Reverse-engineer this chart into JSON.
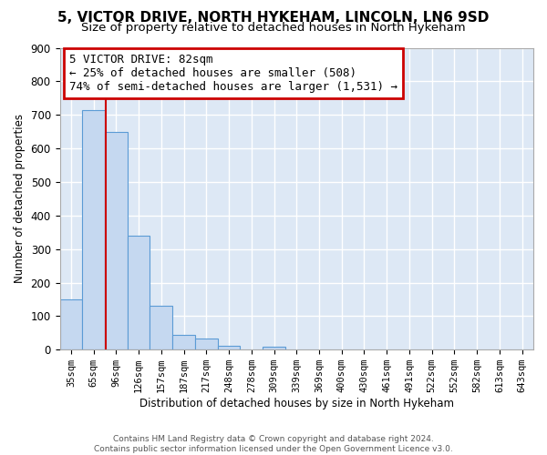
{
  "title1": "5, VICTOR DRIVE, NORTH HYKEHAM, LINCOLN, LN6 9SD",
  "title2": "Size of property relative to detached houses in North Hykeham",
  "xlabel": "Distribution of detached houses by size in North Hykeham",
  "ylabel": "Number of detached properties",
  "bar_labels": [
    "35sqm",
    "65sqm",
    "96sqm",
    "126sqm",
    "157sqm",
    "187sqm",
    "217sqm",
    "248sqm",
    "278sqm",
    "309sqm",
    "339sqm",
    "369sqm",
    "400sqm",
    "430sqm",
    "461sqm",
    "491sqm",
    "522sqm",
    "552sqm",
    "582sqm",
    "613sqm",
    "643sqm"
  ],
  "bar_heights": [
    150,
    715,
    650,
    340,
    130,
    43,
    32,
    12,
    0,
    10,
    0,
    0,
    0,
    0,
    0,
    0,
    0,
    0,
    0,
    0,
    0
  ],
  "bar_color": "#c5d8f0",
  "bar_edge_color": "#5b9bd5",
  "vline_color": "#cc0000",
  "annotation_text": "5 VICTOR DRIVE: 82sqm\n← 25% of detached houses are smaller (508)\n74% of semi-detached houses are larger (1,531) →",
  "annotation_box_color": "white",
  "annotation_box_edge": "#cc0000",
  "annotation_fontsize": 9,
  "ylim": [
    0,
    900
  ],
  "yticks": [
    0,
    100,
    200,
    300,
    400,
    500,
    600,
    700,
    800,
    900
  ],
  "background_color": "#dde8f5",
  "grid_color": "white",
  "footer": "Contains HM Land Registry data © Crown copyright and database right 2024.\nContains public sector information licensed under the Open Government Licence v3.0.",
  "title1_fontsize": 11,
  "title2_fontsize": 9.5
}
